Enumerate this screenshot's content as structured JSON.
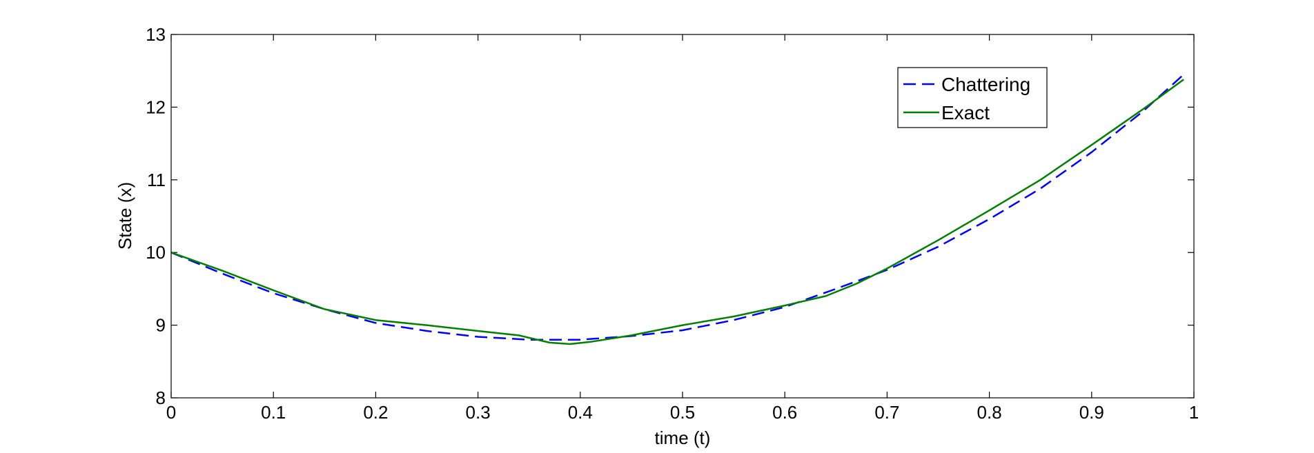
{
  "chart_data": {
    "type": "line",
    "title": "",
    "xlabel": "time (t)",
    "ylabel": "State (x)",
    "xlim": [
      0,
      1
    ],
    "ylim": [
      8,
      13
    ],
    "xticks": [
      0,
      0.1,
      0.2,
      0.3,
      0.4,
      0.5,
      0.6,
      0.7,
      0.8,
      0.9,
      1
    ],
    "xtick_labels": [
      "0",
      "0.1",
      "0.2",
      "0.3",
      "0.4",
      "0.5",
      "0.6",
      "0.7",
      "0.8",
      "0.9",
      "1"
    ],
    "yticks": [
      8,
      9,
      10,
      11,
      12,
      13
    ],
    "ytick_labels": [
      "8",
      "9",
      "10",
      "11",
      "12",
      "13"
    ],
    "grid": false,
    "legend_position": "top-right",
    "series": [
      {
        "name": "Chattering",
        "style": "dashed",
        "color": "#0000ff",
        "x": [
          0,
          0.05,
          0.1,
          0.15,
          0.2,
          0.25,
          0.3,
          0.35,
          0.4,
          0.45,
          0.5,
          0.55,
          0.6,
          0.65,
          0.7,
          0.75,
          0.8,
          0.85,
          0.9,
          0.95,
          0.99
        ],
        "y": [
          10.0,
          9.71,
          9.44,
          9.22,
          9.03,
          8.92,
          8.84,
          8.8,
          8.8,
          8.85,
          8.93,
          9.07,
          9.25,
          9.5,
          9.76,
          10.08,
          10.46,
          10.88,
          11.38,
          11.94,
          12.45
        ]
      },
      {
        "name": "Exact",
        "style": "solid",
        "color": "#007f00",
        "x": [
          0,
          0.05,
          0.1,
          0.15,
          0.2,
          0.25,
          0.3,
          0.34,
          0.37,
          0.39,
          0.41,
          0.45,
          0.5,
          0.55,
          0.6,
          0.64,
          0.67,
          0.7,
          0.75,
          0.8,
          0.85,
          0.9,
          0.95,
          0.99
        ],
        "y": [
          10.0,
          9.75,
          9.48,
          9.22,
          9.07,
          9.0,
          8.92,
          8.86,
          8.76,
          8.74,
          8.77,
          8.86,
          9.0,
          9.12,
          9.27,
          9.4,
          9.57,
          9.78,
          10.17,
          10.58,
          11.0,
          11.48,
          11.97,
          12.38
        ]
      }
    ]
  }
}
